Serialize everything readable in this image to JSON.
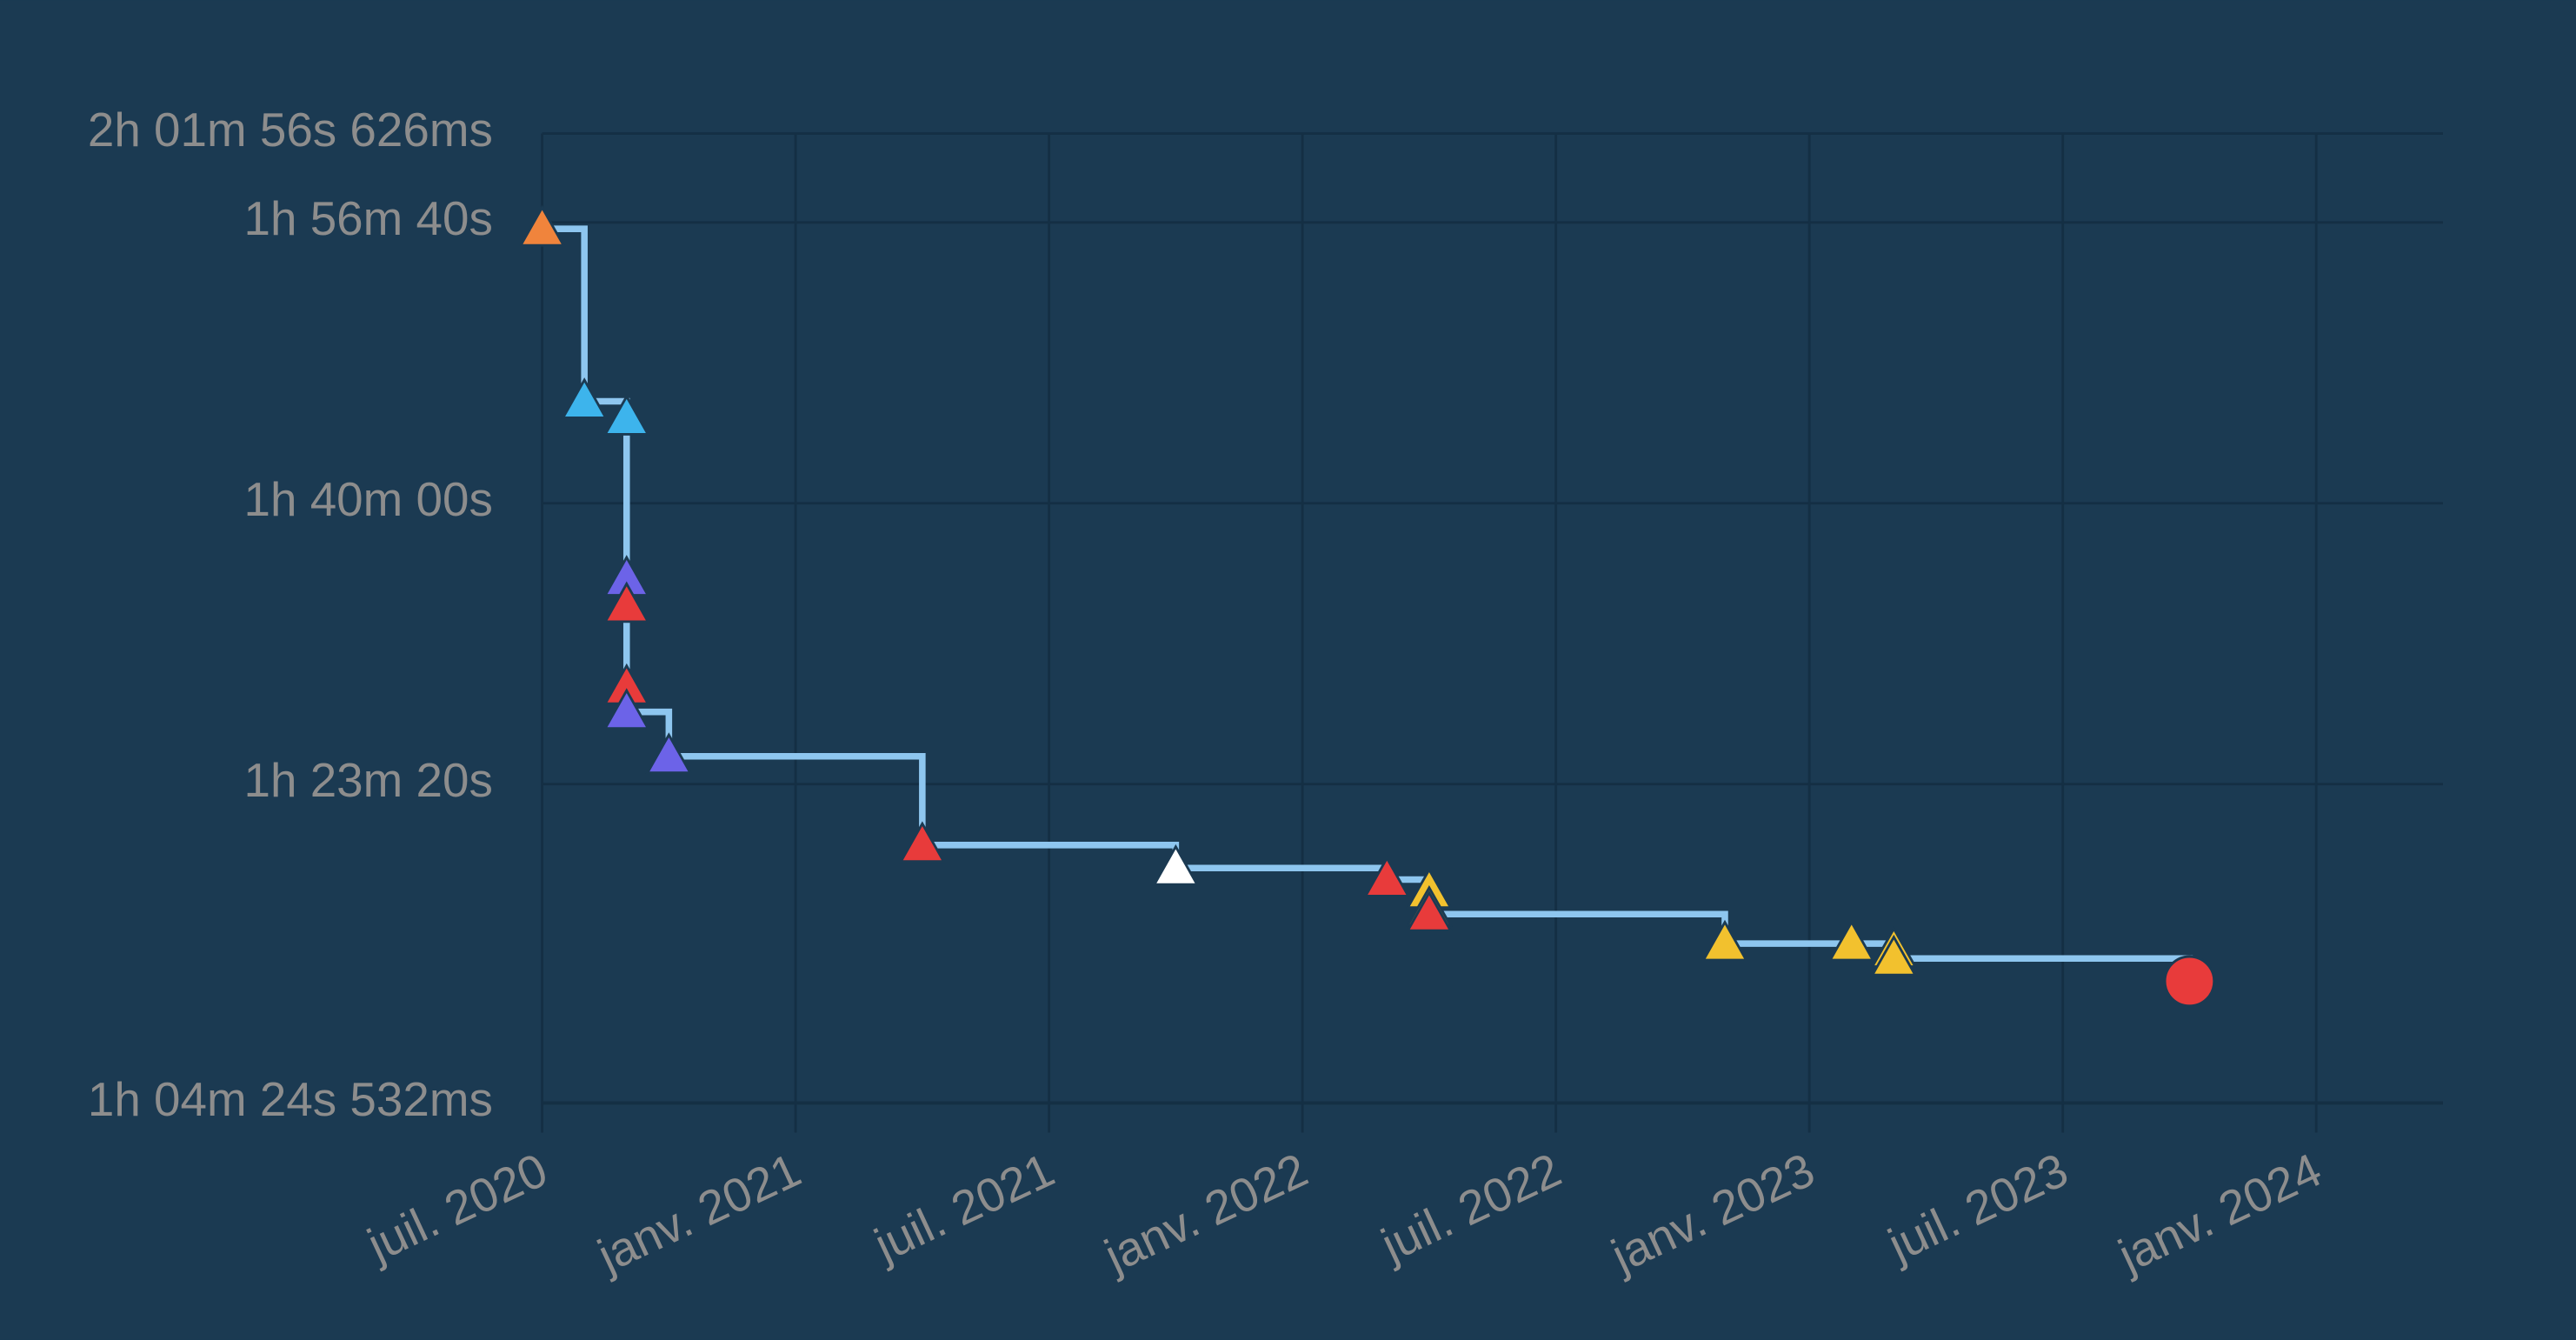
{
  "chart_data": {
    "type": "step",
    "x": [
      "2020-07",
      "2020-08",
      "2020-09",
      "2020-09",
      "2020-09",
      "2020-09",
      "2020-09",
      "2020-10",
      "2021-04",
      "2021-10",
      "2022-03",
      "2022-04",
      "2022-04",
      "2022-04",
      "2022-11",
      "2023-02",
      "2023-03",
      "2023-03",
      "2023-10"
    ],
    "series": [
      {
        "color": "#8ec6ef",
        "values": [
          6977,
          6363,
          6304,
          5731,
          5637,
          5345,
          5257,
          5099,
          4783,
          4701,
          4660,
          4619,
          4555,
          4537,
          4432,
          4432,
          4409,
          4379,
          4298
        ],
        "colors": [
          "#f0843c",
          "#3db4ec",
          "#3db4ec",
          "#6c63e8",
          "#e83b3b",
          "#e83b3b",
          "#6c63e8",
          "#6c63e8",
          "#e83b3b",
          "#ffffff",
          "#e83b3b",
          "#f2c12e",
          "#f2c12e",
          "#e83b3b",
          "#f2c12e",
          "#f2c12e",
          "#f2c12e",
          "#f2c12e",
          "#e83b3b"
        ],
        "markers": [
          "triangle",
          "triangle",
          "triangle",
          "triangle",
          "triangle",
          "triangle",
          "triangle",
          "triangle",
          "triangle",
          "triangle",
          "triangle",
          "triangle",
          "triangle",
          "triangle",
          "triangle",
          "triangle",
          "triangle",
          "triangle",
          "circle"
        ]
      }
    ],
    "xlim": [
      "2020-07",
      "2024-04"
    ],
    "xticks": [
      {
        "value": "2020-07",
        "label": "juil. 2020"
      },
      {
        "value": "2021-01",
        "label": "janv. 2021"
      },
      {
        "value": "2021-07",
        "label": "juil. 2021"
      },
      {
        "value": "2022-01",
        "label": "janv. 2022"
      },
      {
        "value": "2022-07",
        "label": "juil. 2022"
      },
      {
        "value": "2023-01",
        "label": "janv. 2023"
      },
      {
        "value": "2023-07",
        "label": "juil. 2023"
      },
      {
        "value": "2024-01",
        "label": "janv. 2024"
      }
    ],
    "ylim": [
      3864.532,
      7316.626
    ],
    "yticks": [
      {
        "value": 7316.626,
        "label": "2h 01m 56s 626ms"
      },
      {
        "value": 7000,
        "label": "1h 56m 40s"
      },
      {
        "value": 6000,
        "label": "1h 40m 00s"
      },
      {
        "value": 5000,
        "label": "1h 23m 20s"
      },
      {
        "value": 3864.532,
        "label": "1h 04m 24s 532ms"
      }
    ],
    "grid": true
  }
}
